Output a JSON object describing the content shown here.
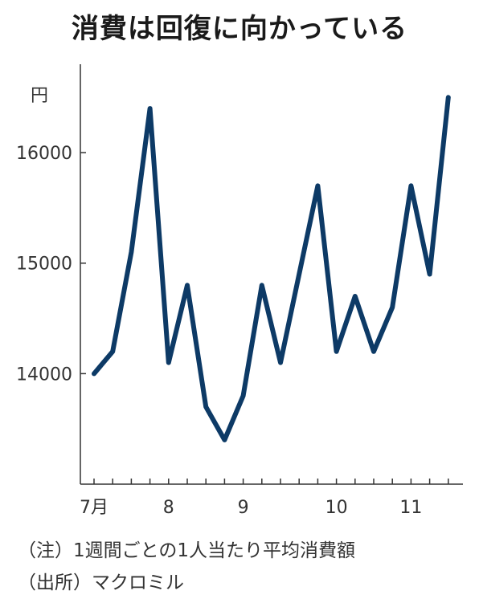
{
  "title": "消費は回復に向かっている",
  "chart_data": {
    "type": "line",
    "title": "消費は回復に向かっている",
    "ylabel": "円",
    "xlabel": "",
    "ylim": [
      13000,
      16800
    ],
    "yticks": [
      14000,
      15000,
      16000
    ],
    "ytick_labels": [
      "14000",
      "15000",
      "16000"
    ],
    "xtick_labels": [
      "7月",
      "8",
      "9",
      "10",
      "11"
    ],
    "xtick_index": [
      0,
      4,
      8,
      13,
      17
    ],
    "grid": false,
    "color": "#0d3a66",
    "values": [
      14000,
      14200,
      15100,
      16400,
      14100,
      14800,
      13700,
      13400,
      13800,
      14800,
      14100,
      14900,
      15700,
      14200,
      14700,
      14200,
      14600,
      15700,
      14900,
      16500
    ]
  },
  "notes": {
    "note1": "（注）1週間ごとの1人当たり平均消費額",
    "note2": "（出所）マクロミル"
  }
}
